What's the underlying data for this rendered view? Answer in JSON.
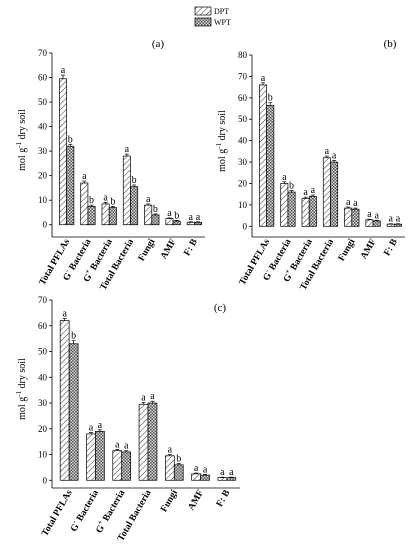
{
  "legend": [
    {
      "label": "DPT",
      "pattern": "diagonal-hatch"
    },
    {
      "label": "WPT",
      "pattern": "crosshatch"
    }
  ],
  "chart_data": [
    {
      "type": "bar",
      "panel": "(a)",
      "ylabel": "mol g-1 dry soil",
      "ylim": [
        -5,
        70
      ],
      "yticks": [
        0,
        10,
        20,
        30,
        40,
        50,
        60,
        70
      ],
      "categories": [
        "Total PFLAs",
        "G- Bacteria",
        "G+ Bacteria",
        "Total Bacteria",
        "Fungi",
        "AMF",
        "F: B"
      ],
      "series": [
        {
          "name": "DPT",
          "values": [
            59.5,
            17,
            8.5,
            28,
            8,
            2.5,
            1
          ],
          "errors": [
            1.5,
            0.8,
            0.6,
            0.8,
            0.5,
            0.3,
            0.2
          ],
          "letters": [
            "a",
            "a",
            "a",
            "a",
            "a",
            "a",
            "a"
          ]
        },
        {
          "name": "WPT",
          "values": [
            32,
            7.5,
            7,
            15.5,
            4,
            1.5,
            1
          ],
          "errors": [
            0.8,
            0.5,
            0.5,
            0.7,
            0.4,
            0.3,
            0.2
          ],
          "letters": [
            "b",
            "b",
            "b",
            "b",
            "b",
            "b",
            "a"
          ]
        }
      ]
    },
    {
      "type": "bar",
      "panel": "(b)",
      "ylabel": "mol g-1 dry soil",
      "ylim": [
        -5,
        80
      ],
      "yticks": [
        0,
        10,
        20,
        30,
        40,
        50,
        60,
        70,
        80
      ],
      "categories": [
        "Total PFLAs",
        "G- Bacteria",
        "G+ Bacteria",
        "Total Bacteria",
        "Fungi",
        "AMF",
        "F: B"
      ],
      "series": [
        {
          "name": "DPT",
          "values": [
            66,
            20,
            13,
            32,
            8.5,
            3,
            1
          ],
          "errors": [
            1.0,
            0.8,
            0.6,
            0.8,
            0.5,
            0.3,
            0.2
          ],
          "letters": [
            "a",
            "a",
            "a",
            "a",
            "a",
            "a",
            "a"
          ]
        },
        {
          "name": "WPT",
          "values": [
            56.5,
            16,
            14,
            30,
            8,
            2.5,
            1
          ],
          "errors": [
            1.2,
            0.8,
            0.6,
            0.8,
            0.5,
            0.3,
            0.2
          ],
          "letters": [
            "b",
            "b",
            "a",
            "a",
            "a",
            "a",
            "a"
          ]
        }
      ]
    },
    {
      "type": "bar",
      "panel": "(c)",
      "ylabel": "mol g-1 dry soil",
      "ylim": [
        -3,
        70
      ],
      "yticks": [
        0,
        10,
        20,
        30,
        40,
        50,
        60,
        70
      ],
      "categories": [
        "Total PFLAs",
        "G- Bacteria",
        "G+ Bacteria",
        "Total Bacteria",
        "Fungi",
        "AMF",
        "F: B"
      ],
      "series": [
        {
          "name": "DPT",
          "values": [
            62,
            18,
            11.5,
            29.5,
            9.5,
            2.5,
            1
          ],
          "errors": [
            0.8,
            0.6,
            0.5,
            0.7,
            0.5,
            0.3,
            0.2
          ],
          "letters": [
            "a",
            "a",
            "a",
            "a",
            "a",
            "a",
            "a"
          ]
        },
        {
          "name": "WPT",
          "values": [
            53,
            19,
            11,
            30,
            6,
            2,
            1
          ],
          "errors": [
            1.2,
            0.6,
            0.5,
            0.7,
            0.5,
            0.3,
            0.2
          ],
          "letters": [
            "b",
            "a",
            "a",
            "a",
            "b",
            "a",
            "a"
          ]
        }
      ]
    }
  ]
}
